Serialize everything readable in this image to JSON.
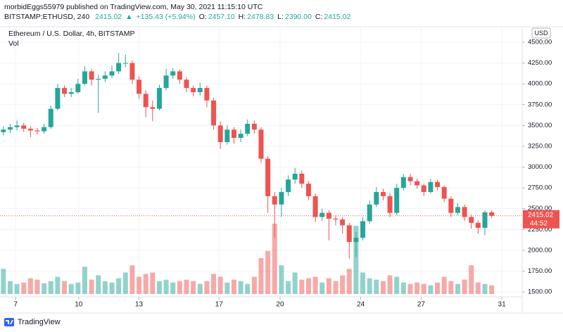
{
  "chart_data": {
    "type": "candlestick",
    "publisher": "morbidEggs55979 published on TradingView.com, May 30, 2021 11:15:10 UTC",
    "symbol": "BITSTAMP:ETHUSD, 240",
    "quote": [
      "2415.02",
      "▲",
      "+135.43 (+5.94%)",
      "O:",
      "2457.10",
      "H:",
      "2478.83",
      "L:",
      "2390.00",
      "C:",
      "2415.02"
    ],
    "title": "Ethereum / U.S. Dollar, 4h, BITSTAMP",
    "volume_label": "Vol",
    "currency": "USD",
    "price_label": "2415.02",
    "countdown": "44:52",
    "brand": "TradingView",
    "up_color": "#26a69a",
    "down_color": "#ef5350",
    "grid": true,
    "open": [
      3420,
      3450,
      3480,
      3500,
      3460,
      3440,
      3430,
      3480,
      3700,
      3950,
      3880,
      3900,
      4000,
      4150,
      4050,
      4060,
      4100,
      4150,
      4250,
      4250,
      4050,
      3880,
      3720,
      3700,
      3950,
      4100,
      4150,
      4050,
      3950,
      3900,
      3950,
      3800,
      3500,
      3300,
      3450,
      3350,
      3400,
      3520,
      3450,
      3100,
      2650,
      2550,
      2700,
      2850,
      2920,
      2800,
      2650,
      2400,
      2450,
      2380,
      2370,
      2300,
      2100,
      2150,
      2350,
      2550,
      2700,
      2650,
      2450,
      2750,
      2880,
      2830,
      2780,
      2700,
      2820,
      2760,
      2620,
      2450,
      2520,
      2400,
      2330,
      2270,
      2457.1
    ],
    "high": [
      3490,
      3520,
      3560,
      3530,
      3490,
      3470,
      3520,
      3740,
      4000,
      3980,
      3950,
      4060,
      4210,
      4180,
      4110,
      4150,
      4220,
      4370,
      4350,
      4280,
      4090,
      3920,
      3800,
      3990,
      4180,
      4190,
      4170,
      4080,
      3980,
      4010,
      3980,
      3830,
      3550,
      3500,
      3480,
      3450,
      3570,
      3560,
      3480,
      3130,
      2700,
      2750,
      2900,
      2990,
      2960,
      2830,
      2680,
      2500,
      2480,
      2420,
      2400,
      2330,
      2220,
      2400,
      2600,
      2760,
      2740,
      2690,
      2800,
      2920,
      2920,
      2860,
      2800,
      2860,
      2850,
      2780,
      2650,
      2570,
      2550,
      2430,
      2360,
      2480,
      2478.83
    ],
    "low": [
      3380,
      3410,
      3440,
      3420,
      3360,
      3390,
      3400,
      3460,
      3680,
      3840,
      3840,
      3880,
      3980,
      3980,
      3650,
      4020,
      4070,
      4120,
      4200,
      4000,
      3820,
      3600,
      3550,
      3680,
      3920,
      4060,
      4000,
      3900,
      3850,
      3860,
      3720,
      3450,
      3220,
      3270,
      3280,
      3300,
      3370,
      3400,
      3050,
      2450,
      2150,
      2400,
      2650,
      2800,
      2750,
      2600,
      2340,
      2350,
      2120,
      2300,
      2200,
      1900,
      1920,
      2120,
      2320,
      2520,
      2600,
      2400,
      2420,
      2720,
      2780,
      2740,
      2650,
      2680,
      2720,
      2580,
      2400,
      2420,
      2350,
      2260,
      2200,
      2180,
      2390
    ],
    "close": [
      3450,
      3480,
      3500,
      3460,
      3440,
      3430,
      3480,
      3700,
      3950,
      3880,
      3900,
      4000,
      4150,
      4050,
      4060,
      4100,
      4150,
      4250,
      4250,
      4050,
      3880,
      3720,
      3700,
      3950,
      4100,
      4150,
      4050,
      3950,
      3900,
      3950,
      3800,
      3500,
      3300,
      3450,
      3350,
      3400,
      3520,
      3450,
      3100,
      2650,
      2550,
      2700,
      2850,
      2920,
      2800,
      2650,
      2400,
      2450,
      2380,
      2370,
      2300,
      2100,
      2150,
      2350,
      2550,
      2700,
      2650,
      2450,
      2750,
      2880,
      2830,
      2780,
      2700,
      2820,
      2760,
      2620,
      2450,
      2520,
      2400,
      2330,
      2270,
      2457.1,
      2415.02
    ],
    "volume": [
      35,
      18,
      14,
      16,
      22,
      20,
      15,
      18,
      24,
      18,
      14,
      16,
      38,
      20,
      26,
      18,
      16,
      22,
      30,
      40,
      24,
      28,
      30,
      18,
      20,
      16,
      18,
      20,
      18,
      14,
      18,
      28,
      24,
      16,
      20,
      18,
      14,
      24,
      50,
      60,
      98,
      40,
      18,
      30,
      20,
      22,
      24,
      16,
      22,
      18,
      26,
      35,
      95,
      30,
      22,
      20,
      18,
      26,
      24,
      16,
      14,
      16,
      14,
      12,
      16,
      24,
      18,
      14,
      20,
      40,
      16,
      14,
      12
    ],
    "xlim": [
      -0.5,
      76.5
    ],
    "xticks": [
      {
        "value": 1.8,
        "label": "7"
      },
      {
        "value": 11.1,
        "label": "10"
      },
      {
        "value": 20,
        "label": "13"
      },
      {
        "value": 31.8,
        "label": "17"
      },
      {
        "value": 40.8,
        "label": "20"
      },
      {
        "value": 52.7,
        "label": "24"
      },
      {
        "value": 61.6,
        "label": "27"
      },
      {
        "value": 73.5,
        "label": "31"
      }
    ],
    "ylim": [
      1441,
      4686
    ],
    "yticks": [
      {
        "value": 1500,
        "label": "1500.00"
      },
      {
        "value": 1750,
        "label": "1750.00"
      },
      {
        "value": 2000,
        "label": "2000.00"
      },
      {
        "value": 2250,
        "label": "2250.00"
      },
      {
        "value": 2500,
        "label": "2500.00"
      },
      {
        "value": 2750,
        "label": "2750.00"
      },
      {
        "value": 3000,
        "label": "3000.00"
      },
      {
        "value": 3250,
        "label": "3250.00"
      },
      {
        "value": 3500,
        "label": "3500.00"
      },
      {
        "value": 3750,
        "label": "3750.00"
      },
      {
        "value": 4000,
        "label": "4000.00"
      },
      {
        "value": 4250,
        "label": "4250.00"
      },
      {
        "value": 4500,
        "label": "4500.00"
      }
    ]
  }
}
